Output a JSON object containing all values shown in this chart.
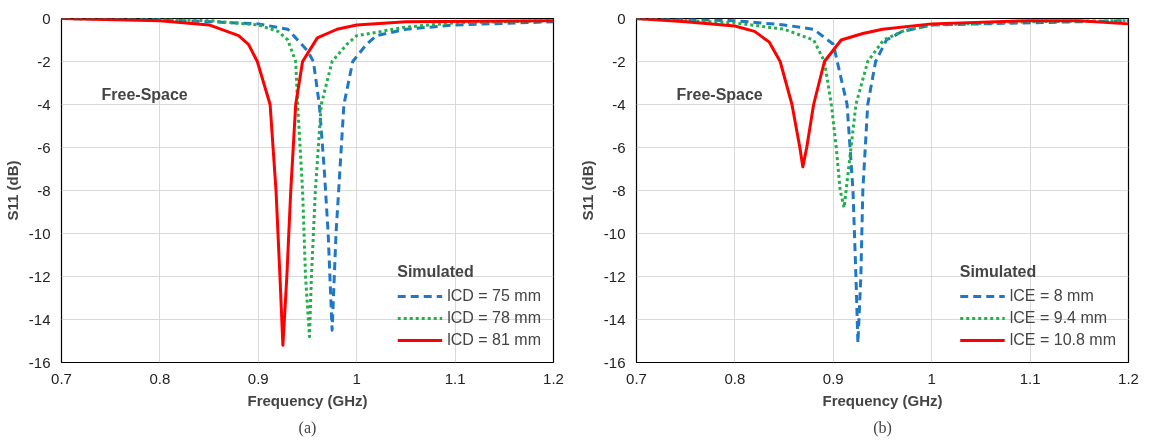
{
  "chart_data": [
    {
      "type": "line",
      "xlabel": "Frequency (GHz)",
      "ylabel": "S11 (dB)",
      "legend_title": "Simulated",
      "annotations": [
        "Free-Space",
        "(a)"
      ],
      "xlim": [
        0.7,
        1.2
      ],
      "ylim": [
        -16,
        0
      ],
      "xticks": [
        0.7,
        0.8,
        0.9,
        1,
        1.1,
        1.2
      ],
      "yticks": [
        -16,
        -14,
        -12,
        -10,
        -8,
        -6,
        -4,
        -2,
        0
      ],
      "grid": true,
      "legend": "bottom right",
      "series": [
        {
          "name": "lCD = 75 mm",
          "color": "#1f77c8",
          "line_style": "dashed",
          "x": [
            0.7,
            0.8,
            0.9,
            0.93,
            0.95,
            0.956,
            0.962,
            0.967,
            0.971,
            0.975,
            0.979,
            0.983,
            0.987,
            0.996,
            1.01,
            1.02,
            1.05,
            1.1,
            1.2
          ],
          "values": [
            0,
            -0.05,
            -0.25,
            -0.5,
            -1.5,
            -2,
            -4,
            -7,
            -10,
            -14.5,
            -10,
            -7,
            -4,
            -2,
            -1.2,
            -0.8,
            -0.5,
            -0.3,
            -0.15
          ]
        },
        {
          "name": "lCD = 78 mm",
          "color": "#22b04a",
          "line_style": "dotted",
          "x": [
            0.7,
            0.8,
            0.85,
            0.9,
            0.92,
            0.93,
            0.938,
            0.94,
            0.945,
            0.948,
            0.952,
            0.954,
            0.958,
            0.964,
            0.975,
            0.99,
            1.0,
            1.05,
            1.1,
            1.2
          ],
          "values": [
            0,
            -0.05,
            -0.1,
            -0.3,
            -0.6,
            -1.0,
            -2,
            -4,
            -8,
            -12,
            -14.8,
            -12,
            -8,
            -4,
            -2,
            -1.2,
            -0.8,
            -0.4,
            -0.2,
            -0.1
          ]
        },
        {
          "name": "lCD = 81 mm",
          "color": "#ff0000",
          "line_style": "solid",
          "x": [
            0.7,
            0.8,
            0.85,
            0.88,
            0.89,
            0.899,
            0.912,
            0.918,
            0.922,
            0.925,
            0.929,
            0.933,
            0.938,
            0.945,
            0.96,
            0.98,
            1.0,
            1.05,
            1.2
          ],
          "values": [
            0,
            -0.1,
            -0.3,
            -0.8,
            -1.2,
            -2,
            -4,
            -8,
            -12,
            -15.2,
            -12,
            -8,
            -4,
            -2,
            -0.9,
            -0.5,
            -0.3,
            -0.15,
            -0.1
          ]
        }
      ]
    },
    {
      "type": "line",
      "xlabel": "Frequency (GHz)",
      "ylabel": "S11 (dB)",
      "legend_title": "Simulated",
      "annotations": [
        "Free-Space",
        "(b)"
      ],
      "xlim": [
        0.7,
        1.2
      ],
      "ylim": [
        -16,
        0
      ],
      "xticks": [
        0.7,
        0.8,
        0.9,
        1,
        1.1,
        1.2
      ],
      "yticks": [
        -16,
        -14,
        -12,
        -10,
        -8,
        -6,
        -4,
        -2,
        0
      ],
      "grid": true,
      "legend": "bottom right",
      "series": [
        {
          "name": "lCE = 8 mm",
          "color": "#1f77c8",
          "line_style": "dashed",
          "x": [
            0.7,
            0.8,
            0.85,
            0.88,
            0.9,
            0.904,
            0.914,
            0.92,
            0.923,
            0.925,
            0.928,
            0.93,
            0.935,
            0.943,
            0.954,
            0.97,
            1.0,
            1.2
          ],
          "values": [
            0,
            -0.1,
            -0.3,
            -0.5,
            -1.2,
            -2,
            -4,
            -8,
            -12,
            -15.1,
            -12,
            -8,
            -4,
            -2,
            -1,
            -0.6,
            -0.3,
            -0.1
          ]
        },
        {
          "name": "lCE = 9.4 mm",
          "color": "#22b04a",
          "line_style": "dotted",
          "x": [
            0.7,
            0.8,
            0.85,
            0.88,
            0.891,
            0.898,
            0.903,
            0.907,
            0.911,
            0.918,
            0.923,
            0.935,
            0.951,
            0.97,
            1.0,
            1.1,
            1.2
          ],
          "values": [
            0,
            -0.2,
            -0.5,
            -1.0,
            -2,
            -4,
            -6,
            -8,
            -8.8,
            -6,
            -4,
            -2,
            -1,
            -0.6,
            -0.3,
            -0.15,
            -0.1
          ]
        },
        {
          "name": "lCE = 10.8 mm",
          "color": "#ff0000",
          "line_style": "solid",
          "x": [
            0.7,
            0.75,
            0.8,
            0.82,
            0.835,
            0.846,
            0.858,
            0.866,
            0.869,
            0.873,
            0.88,
            0.891,
            0.908,
            0.93,
            0.95,
            1.0,
            1.1,
            1.15,
            1.2
          ],
          "values": [
            0,
            -0.15,
            -0.35,
            -0.6,
            -1.1,
            -2,
            -4,
            -6,
            -6.9,
            -6,
            -4,
            -2,
            -1,
            -0.7,
            -0.5,
            -0.25,
            -0.1,
            -0.1,
            -0.25
          ]
        }
      ]
    }
  ]
}
